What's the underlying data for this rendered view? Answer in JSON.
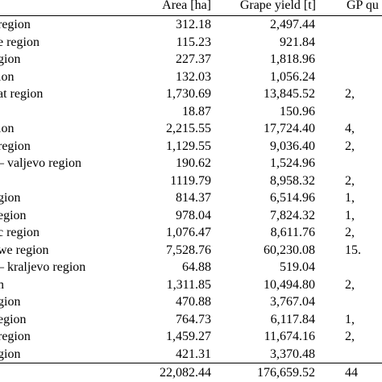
{
  "table": {
    "headers": {
      "area": "Area [ha]",
      "yield": "Grape yield [t]",
      "gp": "GP qu"
    },
    "rows": [
      {
        "region": "region",
        "area": "312.18",
        "yield": "2,497.44",
        "gp": ""
      },
      {
        "region": "e region",
        "area": "115.23",
        "yield": "921.84",
        "gp": ""
      },
      {
        "region": "gion",
        "area": "227.37",
        "yield": "1,818.96",
        "gp": ""
      },
      {
        "region": "ion",
        "area": "132.03",
        "yield": "1,056.24",
        "gp": ""
      },
      {
        "region": "at region",
        "area": "1,730.69",
        "yield": "13,845.52",
        "gp": "2,"
      },
      {
        "region": "",
        "area": "18.87",
        "yield": "150.96",
        "gp": ""
      },
      {
        "region": "ion",
        "area": "2,215.55",
        "yield": "17,724.40",
        "gp": "4,"
      },
      {
        "region": "region",
        "area": "1,129.55",
        "yield": "9,036.40",
        "gp": "2,"
      },
      {
        "region": "– valjevo region",
        "area": "190.62",
        "yield": "1,524.96",
        "gp": ""
      },
      {
        "region": "",
        "area": "1119.79",
        "yield": "8,958.32",
        "gp": "2,"
      },
      {
        "region": "gion",
        "area": "814.37",
        "yield": "6,514.96",
        "gp": "1,"
      },
      {
        "region": "egion",
        "area": "978.04",
        "yield": "7,824.32",
        "gp": "1,"
      },
      {
        "region": "c region",
        "area": "1,076.47",
        "yield": "8,611.76",
        "gp": "2,"
      },
      {
        "region": "we region",
        "area": "7,528.76",
        "yield": "60,230.08",
        "gp": "15."
      },
      {
        "region": "– kraljevo region",
        "area": "64.88",
        "yield": "519.04",
        "gp": ""
      },
      {
        "region": "n",
        "area": "1,311.85",
        "yield": "10,494.80",
        "gp": "2,"
      },
      {
        "region": "gion",
        "area": "470.88",
        "yield": "3,767.04",
        "gp": ""
      },
      {
        "region": "egion",
        "area": "764.73",
        "yield": "6,117.84",
        "gp": "1,"
      },
      {
        "region": "region",
        "area": "1,459.27",
        "yield": "11,674.16",
        "gp": "2,"
      },
      {
        "region": "gion",
        "area": "421.31",
        "yield": "3,370.48",
        "gp": ""
      }
    ],
    "total": {
      "region": "",
      "area": "22,082.44",
      "yield": "176,659.52",
      "gp": "44"
    }
  }
}
